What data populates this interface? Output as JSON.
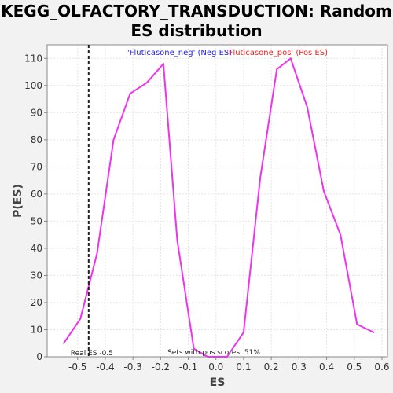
{
  "title_line1": "KEGG_OLFACTORY_TRANSDUCTION: Random",
  "title_line2": "ES distribution",
  "chart_data": {
    "type": "line",
    "title": "KEGG_OLFACTORY_TRANSDUCTION: Random ES distribution",
    "xlabel": "ES",
    "ylabel": "P(ES)",
    "xlim": [
      -0.61,
      0.62
    ],
    "ylim": [
      0,
      115
    ],
    "x_ticks": [
      -0.5,
      -0.4,
      -0.3,
      -0.2,
      -0.1,
      0.0,
      0.1,
      0.2,
      0.3,
      0.4,
      0.5,
      0.6
    ],
    "x_tick_labels": [
      "-0.5",
      "-0.4",
      "-0.3",
      "-0.2",
      "-0.1",
      "0.0",
      "0.1",
      "0.2",
      "0.3",
      "0.4",
      "0.5",
      "0.6"
    ],
    "y_ticks": [
      0,
      10,
      20,
      30,
      40,
      50,
      60,
      70,
      80,
      90,
      100,
      110
    ],
    "y_tick_labels": [
      "0",
      "10",
      "20",
      "30",
      "40",
      "50",
      "60",
      "70",
      "80",
      "90",
      "100",
      "110"
    ],
    "grid": true,
    "series": [
      {
        "color": "#ee33ee",
        "x": [
          -0.55,
          -0.49,
          -0.43,
          -0.37,
          -0.31,
          -0.25,
          -0.19,
          -0.14,
          -0.08,
          -0.03,
          0.04,
          0.1,
          0.16,
          0.22,
          0.27,
          0.33,
          0.39,
          0.45,
          0.51,
          0.57
        ],
        "y": [
          5,
          14,
          38,
          80,
          97,
          101,
          108,
          43,
          3,
          0,
          0,
          9,
          66,
          106,
          110,
          92,
          61,
          45,
          12,
          9
        ]
      }
    ],
    "real_es": {
      "value": -0.46,
      "label": "Real ES -0.5"
    },
    "legend": [
      {
        "text": "'Fluticasone_neg' (Neg ES)",
        "color": "#2222ee"
      },
      {
        "text": "'Fluticasone_pos' (Pos ES)",
        "color": "#ee2222"
      }
    ],
    "legend_placement": "top-center",
    "annotation": "Sets with pos scores: 51%"
  }
}
